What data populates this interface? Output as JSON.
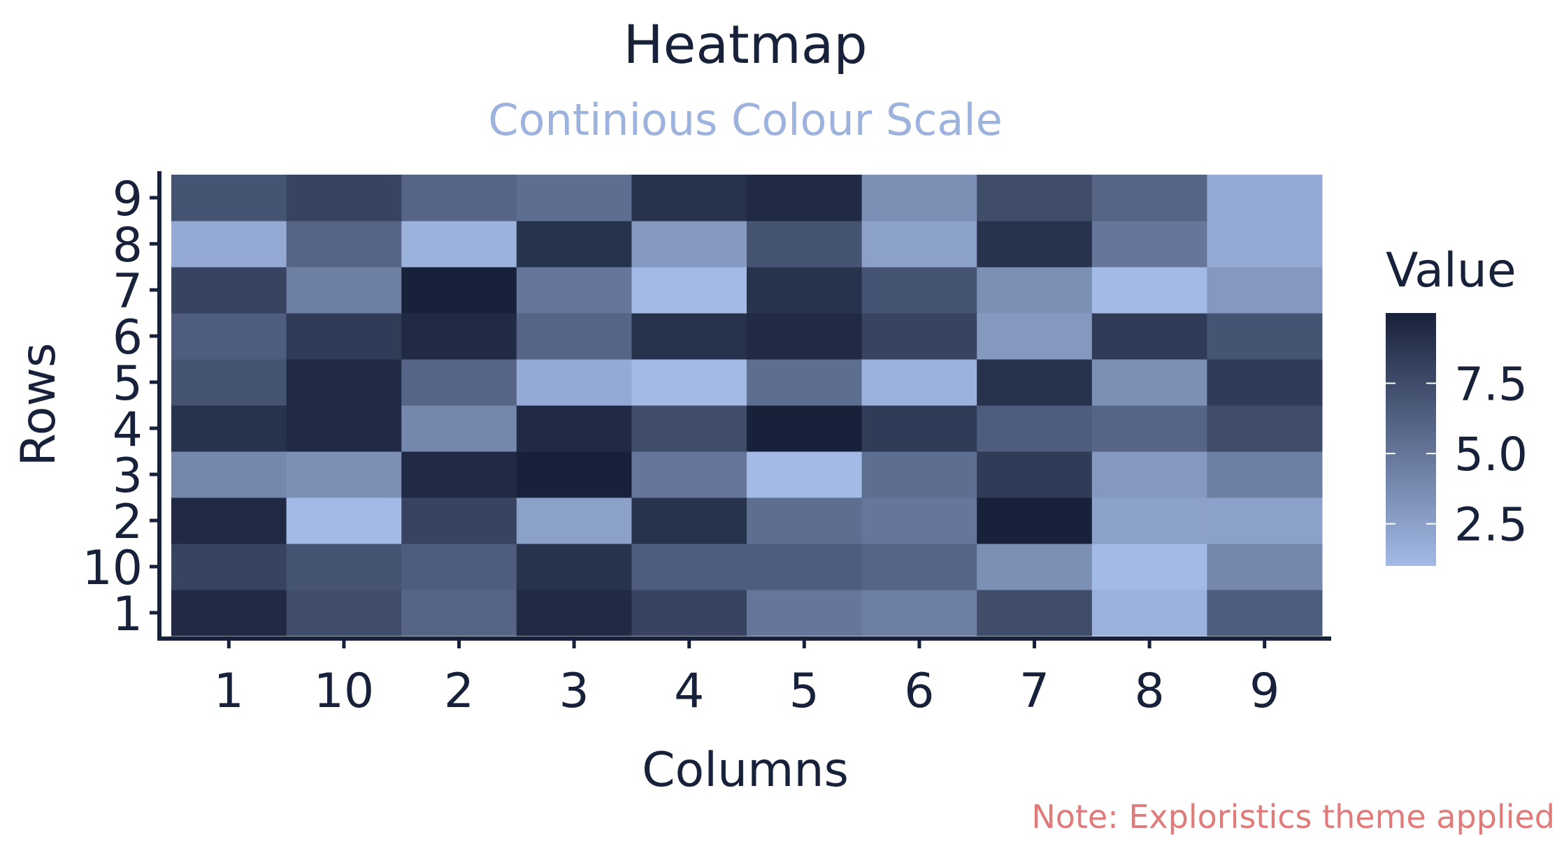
{
  "colors": {
    "text": "#18213a",
    "subtitle": "#9db2dc",
    "caption": "#e07b7b",
    "scale_high": "#18213a",
    "scale_low": "#a3bae6",
    "axis": "#18213a"
  },
  "chart_data": {
    "type": "heatmap",
    "title": "Heatmap",
    "subtitle": "Continious Colour Scale",
    "xlabel": "Columns",
    "ylabel": "Rows",
    "caption": "Note: Exploristics theme applied",
    "legend": {
      "title": "Value",
      "placement": "right",
      "ticks": [
        {
          "value": 2.5,
          "label": "2.5"
        },
        {
          "value": 5.0,
          "label": "5.0"
        },
        {
          "value": 7.5,
          "label": "7.5"
        }
      ],
      "range": [
        1,
        10
      ]
    },
    "x_categories": [
      "1",
      "10",
      "2",
      "3",
      "4",
      "5",
      "6",
      "7",
      "8",
      "9"
    ],
    "y_categories": [
      "1",
      "10",
      "2",
      "3",
      "4",
      "5",
      "6",
      "7",
      "8",
      "9"
    ],
    "values": [
      [
        9.5,
        7.5,
        6.0,
        9.5,
        8.0,
        5.0,
        4.5,
        7.5,
        1.5,
        6.5
      ],
      [
        8.0,
        7.0,
        6.5,
        9.0,
        6.5,
        6.5,
        6.0,
        3.5,
        1.0,
        4.0
      ],
      [
        9.5,
        1.0,
        8.0,
        2.5,
        9.0,
        5.5,
        5.0,
        10.0,
        2.5,
        2.5
      ],
      [
        4.0,
        3.5,
        9.5,
        10.0,
        5.0,
        1.0,
        5.5,
        8.5,
        3.0,
        4.5
      ],
      [
        9.0,
        9.5,
        4.0,
        9.5,
        7.5,
        10.0,
        8.5,
        6.5,
        6.0,
        7.5
      ],
      [
        7.0,
        9.5,
        6.0,
        2.0,
        1.0,
        5.5,
        1.5,
        9.0,
        3.5,
        8.5
      ],
      [
        6.5,
        8.5,
        9.5,
        6.0,
        9.0,
        9.5,
        8.0,
        3.0,
        8.5,
        7.0
      ],
      [
        8.0,
        4.5,
        10.0,
        5.0,
        1.0,
        9.0,
        7.0,
        3.5,
        1.0,
        3.0
      ],
      [
        2.0,
        6.0,
        1.5,
        9.0,
        3.0,
        7.0,
        2.5,
        9.0,
        5.0,
        2.0
      ],
      [
        7.0,
        8.0,
        6.0,
        5.5,
        9.0,
        9.5,
        3.5,
        7.5,
        6.0,
        2.0
      ]
    ]
  }
}
